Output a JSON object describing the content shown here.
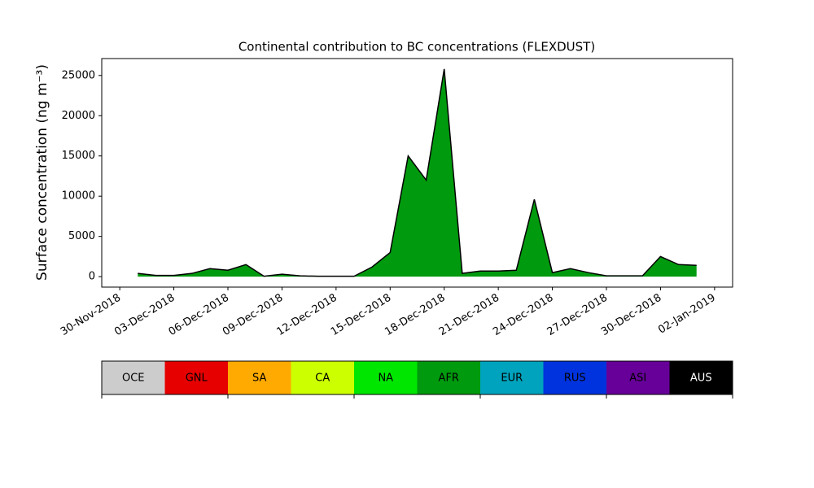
{
  "chart_data": {
    "type": "area",
    "title": "Continental contribution to BC concentrations (FLEXDUST)",
    "y_label": "Surface concentration (ng m⁻³)",
    "x": [
      "2018-12-01",
      "2018-12-02",
      "2018-12-03",
      "2018-12-04",
      "2018-12-05",
      "2018-12-06",
      "2018-12-07",
      "2018-12-08",
      "2018-12-09",
      "2018-12-10",
      "2018-12-11",
      "2018-12-12",
      "2018-12-13",
      "2018-12-14",
      "2018-12-15",
      "2018-12-16",
      "2018-12-17",
      "2018-12-18",
      "2018-12-19",
      "2018-12-20",
      "2018-12-21",
      "2018-12-22",
      "2018-12-23",
      "2018-12-24",
      "2018-12-25",
      "2018-12-26",
      "2018-12-27",
      "2018-12-28",
      "2018-12-29",
      "2018-12-30",
      "2018-12-31",
      "2019-01-01"
    ],
    "series": [
      {
        "name": "AFR",
        "color": "#009a0e",
        "values": [
          400,
          150,
          150,
          400,
          1000,
          800,
          1500,
          50,
          300,
          100,
          50,
          50,
          50,
          1200,
          3000,
          15000,
          12000,
          25800,
          400,
          700,
          700,
          800,
          9600,
          500,
          1000,
          500,
          100,
          100,
          100,
          2500,
          1500,
          1400
        ]
      }
    ],
    "outline_color": "#000000",
    "xlim": [
      "2018-11-29",
      "2019-01-03"
    ],
    "xticks": [
      {
        "value": "2018-11-30",
        "label": "30-Nov-2018"
      },
      {
        "value": "2018-12-03",
        "label": "03-Dec-2018"
      },
      {
        "value": "2018-12-06",
        "label": "06-Dec-2018"
      },
      {
        "value": "2018-12-09",
        "label": "09-Dec-2018"
      },
      {
        "value": "2018-12-12",
        "label": "12-Dec-2018"
      },
      {
        "value": "2018-12-15",
        "label": "15-Dec-2018"
      },
      {
        "value": "2018-12-18",
        "label": "18-Dec-2018"
      },
      {
        "value": "2018-12-21",
        "label": "21-Dec-2018"
      },
      {
        "value": "2018-12-24",
        "label": "24-Dec-2018"
      },
      {
        "value": "2018-12-27",
        "label": "27-Dec-2018"
      },
      {
        "value": "2018-12-30",
        "label": "30-Dec-2018"
      },
      {
        "value": "2019-01-02",
        "label": "02-Jan-2019"
      }
    ],
    "ylim": [
      -1300,
      27100
    ],
    "yticks": [
      0,
      5000,
      10000,
      15000,
      20000,
      25000
    ],
    "colorbar": [
      {
        "name": "OCE",
        "color": "#cccccc"
      },
      {
        "name": "GNL",
        "color": "#e60000"
      },
      {
        "name": "SA",
        "color": "#ffaa00"
      },
      {
        "name": "CA",
        "color": "#ccff00"
      },
      {
        "name": "NA",
        "color": "#00e600"
      },
      {
        "name": "AFR",
        "color": "#009a0e"
      },
      {
        "name": "EUR",
        "color": "#00a3bd"
      },
      {
        "name": "RUS",
        "color": "#0033dd"
      },
      {
        "name": "ASI",
        "color": "#660099"
      },
      {
        "name": "AUS",
        "color": "#000000"
      }
    ]
  }
}
